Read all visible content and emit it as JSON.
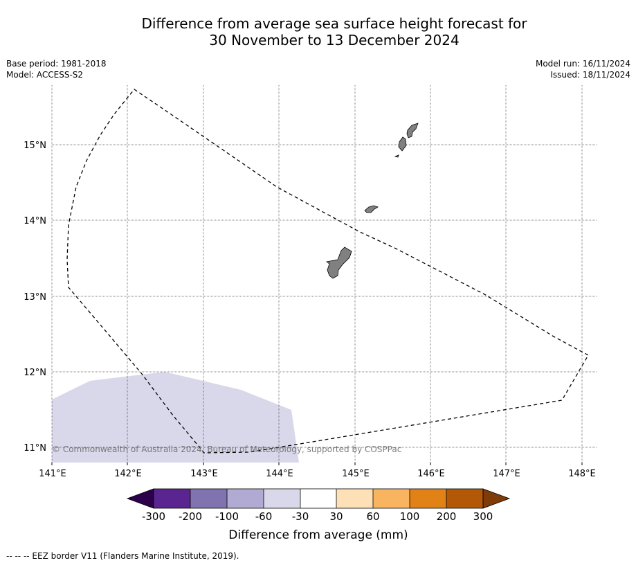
{
  "title": {
    "line1": "Difference from average sea surface height forecast for",
    "line2": "30 November to 13 December 2024"
  },
  "meta_left": {
    "base_period": "Base period: 1981-2018",
    "model": "Model: ACCESS-S2"
  },
  "meta_right": {
    "model_run": "Model run: 16/11/2024",
    "issued": "Issued: 18/11/2024"
  },
  "map": {
    "lon_ticks": [
      "141°E",
      "142°E",
      "143°E",
      "144°E",
      "145°E",
      "146°E",
      "147°E",
      "148°E"
    ],
    "lat_ticks": [
      "15°N",
      "14°N",
      "13°N",
      "12°N",
      "11°N"
    ],
    "lon_range": [
      141,
      148.2
    ],
    "lat_range": [
      10.8,
      15.8
    ],
    "gridlines": true,
    "land_color": "#808080",
    "shaded_region_color": "#d8d8ea",
    "shaded_region_class": "-60 to -30",
    "copyright": "© Commonwealth of Australia 2024, Bureau of Meteorology, supported by COSPPac"
  },
  "colorbar": {
    "labels": [
      "-300",
      "-200",
      "-100",
      "-60",
      "-30",
      "30",
      "60",
      "100",
      "200",
      "300"
    ],
    "colors": [
      "#5a2590",
      "#8073b0",
      "#b1aad3",
      "#d8d8ea",
      "#ffffff",
      "#fde0b5",
      "#f8b45e",
      "#e08216",
      "#b35807"
    ],
    "under_color": "#2d004b",
    "over_color": "#7f3b08",
    "label": "Difference from average (mm)"
  },
  "footnote": "-- -- -- EEZ border V11 (Flanders Marine Institute, 2019)."
}
